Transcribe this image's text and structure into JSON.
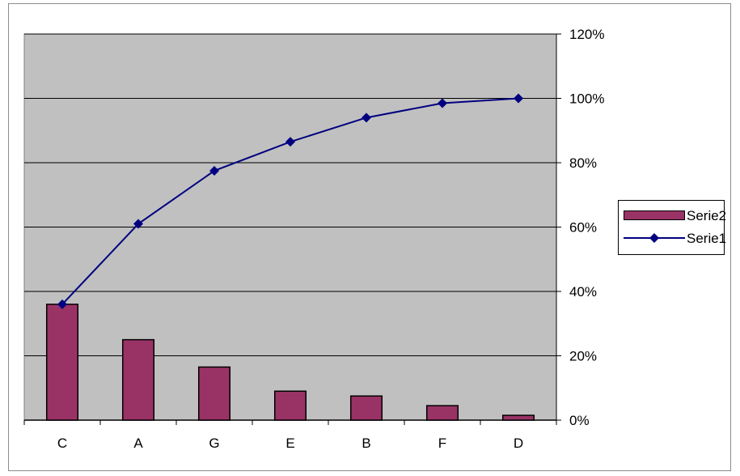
{
  "chart_data": {
    "type": "bar+line",
    "categories": [
      "C",
      "A",
      "G",
      "E",
      "B",
      "F",
      "D"
    ],
    "series": [
      {
        "name": "Serie2",
        "type": "bar",
        "values": [
          0.36,
          0.25,
          0.165,
          0.09,
          0.075,
          0.045,
          0.015
        ],
        "color": "#993366"
      },
      {
        "name": "Serie1",
        "type": "line",
        "marker": "diamond",
        "values": [
          0.36,
          0.61,
          0.775,
          0.865,
          0.94,
          0.985,
          1.0
        ],
        "color": "#000080"
      }
    ],
    "yaxis": {
      "position": "right",
      "range": [
        0,
        1.2
      ],
      "ticks": [
        "0%",
        "20%",
        "40%",
        "60%",
        "80%",
        "100%",
        "120%"
      ]
    },
    "grid": "horizontal",
    "plot_background": "#c0c0c0",
    "legend_placement": "right"
  }
}
